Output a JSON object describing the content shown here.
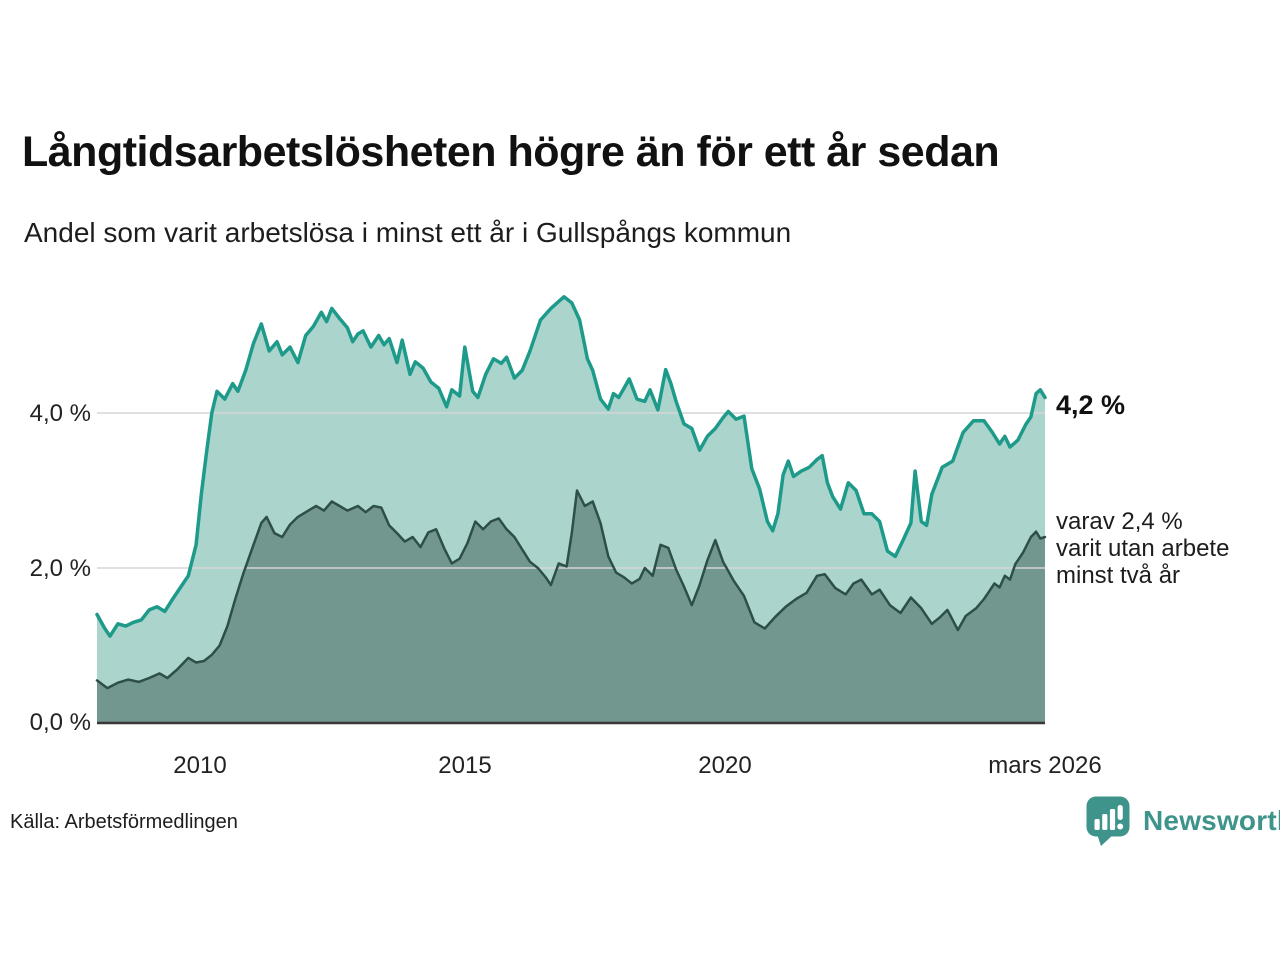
{
  "chart_data": {
    "type": "area",
    "title": "Långtidsarbetslösheten högre än för ett år sedan",
    "subtitle": "Andel som varit arbetslösa i minst ett år i Gullspångs kommun",
    "x_axis": {
      "ticks": [
        "2010",
        "2015",
        "2020",
        "mars 2026"
      ],
      "tick_years": [
        2010,
        2015,
        2020,
        2026.17
      ],
      "range": [
        2008.0,
        2026.17
      ],
      "unit": "year (monthly data)"
    },
    "y_axis": {
      "ticks": [
        "4,0 %",
        "2,0 %",
        "0,0 %"
      ],
      "tick_values": [
        4.0,
        2.0,
        0.0
      ],
      "gridline_values": [
        4.0,
        2.0
      ],
      "range": [
        0,
        5.7
      ],
      "unit": "percent"
    },
    "grid": "horizontal-only",
    "legend_position": "none (direct end-of-line labels)",
    "series": [
      {
        "name": "Andel arbetslösa minst ett år",
        "color": "#1e9a8a",
        "fill": "#abd5cc",
        "end_value": 4.2,
        "points": [
          [
            2008.0,
            1.4
          ],
          [
            2008.15,
            1.22
          ],
          [
            2008.25,
            1.12
          ],
          [
            2008.4,
            1.28
          ],
          [
            2008.55,
            1.25
          ],
          [
            2008.7,
            1.3
          ],
          [
            2008.85,
            1.33
          ],
          [
            2009.0,
            1.46
          ],
          [
            2009.15,
            1.5
          ],
          [
            2009.3,
            1.44
          ],
          [
            2009.45,
            1.6
          ],
          [
            2009.6,
            1.75
          ],
          [
            2009.75,
            1.9
          ],
          [
            2009.9,
            2.3
          ],
          [
            2010.0,
            2.95
          ],
          [
            2010.1,
            3.5
          ],
          [
            2010.2,
            4.0
          ],
          [
            2010.3,
            4.28
          ],
          [
            2010.45,
            4.18
          ],
          [
            2010.6,
            4.38
          ],
          [
            2010.7,
            4.28
          ],
          [
            2010.85,
            4.55
          ],
          [
            2011.0,
            4.9
          ],
          [
            2011.15,
            5.15
          ],
          [
            2011.3,
            4.8
          ],
          [
            2011.45,
            4.92
          ],
          [
            2011.55,
            4.75
          ],
          [
            2011.7,
            4.85
          ],
          [
            2011.85,
            4.65
          ],
          [
            2012.0,
            5.0
          ],
          [
            2012.15,
            5.12
          ],
          [
            2012.3,
            5.3
          ],
          [
            2012.4,
            5.18
          ],
          [
            2012.5,
            5.35
          ],
          [
            2012.65,
            5.22
          ],
          [
            2012.8,
            5.1
          ],
          [
            2012.9,
            4.92
          ],
          [
            2013.0,
            5.02
          ],
          [
            2013.1,
            5.06
          ],
          [
            2013.25,
            4.85
          ],
          [
            2013.4,
            5.0
          ],
          [
            2013.5,
            4.88
          ],
          [
            2013.6,
            4.96
          ],
          [
            2013.75,
            4.65
          ],
          [
            2013.85,
            4.94
          ],
          [
            2014.0,
            4.5
          ],
          [
            2014.1,
            4.66
          ],
          [
            2014.25,
            4.58
          ],
          [
            2014.4,
            4.4
          ],
          [
            2014.55,
            4.32
          ],
          [
            2014.7,
            4.08
          ],
          [
            2014.8,
            4.3
          ],
          [
            2014.95,
            4.22
          ],
          [
            2015.05,
            4.85
          ],
          [
            2015.2,
            4.28
          ],
          [
            2015.3,
            4.2
          ],
          [
            2015.45,
            4.5
          ],
          [
            2015.6,
            4.7
          ],
          [
            2015.75,
            4.64
          ],
          [
            2015.85,
            4.72
          ],
          [
            2016.0,
            4.45
          ],
          [
            2016.15,
            4.55
          ],
          [
            2016.3,
            4.8
          ],
          [
            2016.5,
            5.2
          ],
          [
            2016.7,
            5.35
          ],
          [
            2016.85,
            5.44
          ],
          [
            2016.95,
            5.5
          ],
          [
            2017.1,
            5.42
          ],
          [
            2017.25,
            5.2
          ],
          [
            2017.4,
            4.7
          ],
          [
            2017.5,
            4.55
          ],
          [
            2017.65,
            4.18
          ],
          [
            2017.8,
            4.05
          ],
          [
            2017.9,
            4.25
          ],
          [
            2018.0,
            4.2
          ],
          [
            2018.1,
            4.32
          ],
          [
            2018.2,
            4.44
          ],
          [
            2018.35,
            4.18
          ],
          [
            2018.5,
            4.15
          ],
          [
            2018.6,
            4.3
          ],
          [
            2018.75,
            4.04
          ],
          [
            2018.9,
            4.56
          ],
          [
            2019.0,
            4.38
          ],
          [
            2019.1,
            4.15
          ],
          [
            2019.25,
            3.86
          ],
          [
            2019.4,
            3.8
          ],
          [
            2019.55,
            3.52
          ],
          [
            2019.7,
            3.7
          ],
          [
            2019.85,
            3.8
          ],
          [
            2020.0,
            3.94
          ],
          [
            2020.1,
            4.02
          ],
          [
            2020.25,
            3.92
          ],
          [
            2020.4,
            3.96
          ],
          [
            2020.55,
            3.28
          ],
          [
            2020.7,
            3.02
          ],
          [
            2020.85,
            2.6
          ],
          [
            2020.95,
            2.48
          ],
          [
            2021.05,
            2.7
          ],
          [
            2021.15,
            3.2
          ],
          [
            2021.25,
            3.38
          ],
          [
            2021.35,
            3.18
          ],
          [
            2021.5,
            3.25
          ],
          [
            2021.65,
            3.3
          ],
          [
            2021.8,
            3.4
          ],
          [
            2021.9,
            3.45
          ],
          [
            2022.0,
            3.1
          ],
          [
            2022.1,
            2.92
          ],
          [
            2022.25,
            2.76
          ],
          [
            2022.4,
            3.1
          ],
          [
            2022.55,
            3.0
          ],
          [
            2022.7,
            2.7
          ],
          [
            2022.85,
            2.7
          ],
          [
            2023.0,
            2.6
          ],
          [
            2023.15,
            2.22
          ],
          [
            2023.3,
            2.15
          ],
          [
            2023.45,
            2.36
          ],
          [
            2023.6,
            2.58
          ],
          [
            2023.68,
            3.25
          ],
          [
            2023.8,
            2.6
          ],
          [
            2023.9,
            2.55
          ],
          [
            2024.0,
            2.95
          ],
          [
            2024.2,
            3.3
          ],
          [
            2024.4,
            3.38
          ],
          [
            2024.6,
            3.75
          ],
          [
            2024.8,
            3.9
          ],
          [
            2025.0,
            3.9
          ],
          [
            2025.15,
            3.76
          ],
          [
            2025.3,
            3.6
          ],
          [
            2025.4,
            3.7
          ],
          [
            2025.5,
            3.56
          ],
          [
            2025.65,
            3.65
          ],
          [
            2025.8,
            3.85
          ],
          [
            2025.9,
            3.95
          ],
          [
            2026.0,
            4.25
          ],
          [
            2026.08,
            4.3
          ],
          [
            2026.17,
            4.2
          ]
        ]
      },
      {
        "name": "Andel arbetslösa minst två år",
        "color": "#2e4f49",
        "fill": "#72978f",
        "end_value": 2.4,
        "points": [
          [
            2008.0,
            0.55
          ],
          [
            2008.2,
            0.45
          ],
          [
            2008.4,
            0.52
          ],
          [
            2008.6,
            0.56
          ],
          [
            2008.8,
            0.53
          ],
          [
            2009.0,
            0.58
          ],
          [
            2009.2,
            0.64
          ],
          [
            2009.35,
            0.58
          ],
          [
            2009.55,
            0.7
          ],
          [
            2009.75,
            0.84
          ],
          [
            2009.9,
            0.78
          ],
          [
            2010.05,
            0.8
          ],
          [
            2010.2,
            0.88
          ],
          [
            2010.35,
            1.0
          ],
          [
            2010.5,
            1.25
          ],
          [
            2010.65,
            1.6
          ],
          [
            2010.8,
            1.92
          ],
          [
            2011.0,
            2.3
          ],
          [
            2011.15,
            2.58
          ],
          [
            2011.25,
            2.66
          ],
          [
            2011.4,
            2.45
          ],
          [
            2011.55,
            2.4
          ],
          [
            2011.7,
            2.56
          ],
          [
            2011.85,
            2.66
          ],
          [
            2012.0,
            2.72
          ],
          [
            2012.2,
            2.8
          ],
          [
            2012.35,
            2.74
          ],
          [
            2012.5,
            2.86
          ],
          [
            2012.65,
            2.8
          ],
          [
            2012.8,
            2.74
          ],
          [
            2013.0,
            2.8
          ],
          [
            2013.15,
            2.72
          ],
          [
            2013.3,
            2.8
          ],
          [
            2013.45,
            2.78
          ],
          [
            2013.6,
            2.55
          ],
          [
            2013.75,
            2.45
          ],
          [
            2013.9,
            2.34
          ],
          [
            2014.05,
            2.4
          ],
          [
            2014.2,
            2.27
          ],
          [
            2014.35,
            2.46
          ],
          [
            2014.5,
            2.5
          ],
          [
            2014.65,
            2.26
          ],
          [
            2014.8,
            2.06
          ],
          [
            2014.95,
            2.12
          ],
          [
            2015.1,
            2.32
          ],
          [
            2015.25,
            2.6
          ],
          [
            2015.4,
            2.5
          ],
          [
            2015.55,
            2.6
          ],
          [
            2015.7,
            2.64
          ],
          [
            2015.85,
            2.5
          ],
          [
            2016.0,
            2.4
          ],
          [
            2016.15,
            2.24
          ],
          [
            2016.3,
            2.08
          ],
          [
            2016.45,
            2.0
          ],
          [
            2016.6,
            1.88
          ],
          [
            2016.7,
            1.78
          ],
          [
            2016.85,
            2.06
          ],
          [
            2017.0,
            2.02
          ],
          [
            2017.1,
            2.45
          ],
          [
            2017.2,
            3.0
          ],
          [
            2017.35,
            2.8
          ],
          [
            2017.5,
            2.86
          ],
          [
            2017.65,
            2.58
          ],
          [
            2017.8,
            2.15
          ],
          [
            2017.95,
            1.94
          ],
          [
            2018.1,
            1.88
          ],
          [
            2018.25,
            1.8
          ],
          [
            2018.4,
            1.86
          ],
          [
            2018.5,
            2.0
          ],
          [
            2018.65,
            1.9
          ],
          [
            2018.8,
            2.3
          ],
          [
            2018.95,
            2.26
          ],
          [
            2019.1,
            1.98
          ],
          [
            2019.25,
            1.76
          ],
          [
            2019.4,
            1.52
          ],
          [
            2019.55,
            1.78
          ],
          [
            2019.7,
            2.1
          ],
          [
            2019.85,
            2.36
          ],
          [
            2020.0,
            2.08
          ],
          [
            2020.2,
            1.84
          ],
          [
            2020.4,
            1.64
          ],
          [
            2020.6,
            1.3
          ],
          [
            2020.8,
            1.22
          ],
          [
            2021.0,
            1.37
          ],
          [
            2021.2,
            1.5
          ],
          [
            2021.4,
            1.6
          ],
          [
            2021.6,
            1.68
          ],
          [
            2021.8,
            1.9
          ],
          [
            2021.95,
            1.92
          ],
          [
            2022.15,
            1.74
          ],
          [
            2022.35,
            1.66
          ],
          [
            2022.5,
            1.8
          ],
          [
            2022.65,
            1.85
          ],
          [
            2022.85,
            1.66
          ],
          [
            2023.0,
            1.72
          ],
          [
            2023.2,
            1.52
          ],
          [
            2023.4,
            1.42
          ],
          [
            2023.6,
            1.62
          ],
          [
            2023.8,
            1.48
          ],
          [
            2024.0,
            1.28
          ],
          [
            2024.15,
            1.36
          ],
          [
            2024.3,
            1.46
          ],
          [
            2024.5,
            1.2
          ],
          [
            2024.65,
            1.38
          ],
          [
            2024.85,
            1.48
          ],
          [
            2025.0,
            1.6
          ],
          [
            2025.1,
            1.7
          ],
          [
            2025.2,
            1.8
          ],
          [
            2025.3,
            1.75
          ],
          [
            2025.4,
            1.9
          ],
          [
            2025.5,
            1.85
          ],
          [
            2025.6,
            2.05
          ],
          [
            2025.75,
            2.2
          ],
          [
            2025.9,
            2.4
          ],
          [
            2026.0,
            2.47
          ],
          [
            2026.08,
            2.38
          ],
          [
            2026.17,
            2.4
          ]
        ]
      }
    ],
    "annotations": {
      "end_value_label": "4,2 %",
      "secondary_lines": [
        "varav 2,4 %",
        "varit utan arbete",
        "minst två år"
      ]
    },
    "colors": {
      "gridline": "#d6d6d6",
      "axis_line": "#383838",
      "background": "#ffffff"
    }
  },
  "footer": {
    "source": "Källa: Arbetsförmedlingen",
    "brand": "Newsworthy",
    "brand_color": "#3e938b"
  }
}
